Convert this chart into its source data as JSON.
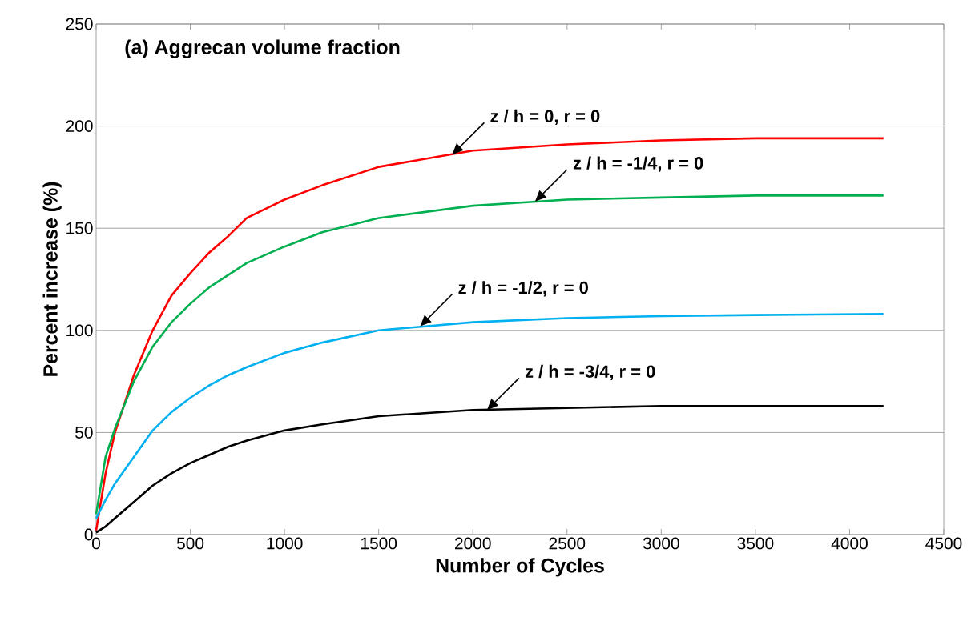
{
  "chart_data": {
    "type": "line",
    "title": "(a) Aggrecan volume fraction",
    "xlabel": "Number of Cycles",
    "ylabel": "Percent increase (%)",
    "xlim": [
      0,
      4500
    ],
    "ylim": [
      0,
      250
    ],
    "xticks": [
      0,
      500,
      1000,
      1500,
      2000,
      2500,
      3000,
      3500,
      4000,
      4500
    ],
    "yticks": [
      0,
      50,
      100,
      150,
      200,
      250
    ],
    "grid": "y",
    "legend": false,
    "marker": "none",
    "line_style": "solid",
    "x": [
      0,
      50,
      100,
      200,
      300,
      400,
      500,
      600,
      700,
      800,
      1000,
      1200,
      1500,
      2000,
      2500,
      3000,
      3500,
      4180
    ],
    "series": [
      {
        "color": "#ff0000",
        "values": [
          2,
          30,
          50,
          78,
          100,
          117,
          128,
          138,
          146,
          155,
          164,
          171,
          180,
          188,
          191,
          193,
          194,
          194
        ]
      },
      {
        "color": "#00b050",
        "values": [
          10,
          38,
          52,
          75,
          92,
          104,
          113,
          121,
          127,
          133,
          141,
          148,
          155,
          161,
          164,
          165,
          166,
          166
        ]
      },
      {
        "color": "#00b0f0",
        "values": [
          8,
          17,
          25,
          38,
          51,
          60,
          67,
          73,
          78,
          82,
          89,
          94,
          100,
          104,
          106,
          107,
          107.5,
          108
        ]
      },
      {
        "color": "#000000",
        "values": [
          1,
          4,
          8,
          16,
          24,
          30,
          35,
          39,
          43,
          46,
          51,
          54,
          58,
          61,
          62,
          63,
          63,
          63
        ]
      }
    ],
    "annotations": [
      {
        "text": "z / h = 0, r = 0",
        "x": 1890,
        "y": 186
      },
      {
        "text": "z / h = -1/4, r = 0",
        "x": 2330,
        "y": 163
      },
      {
        "text": "z / h = -1/2, r = 0",
        "x": 1720,
        "y": 102
      },
      {
        "text": "z / h = -3/4, r = 0",
        "x": 2075,
        "y": 61
      }
    ]
  }
}
